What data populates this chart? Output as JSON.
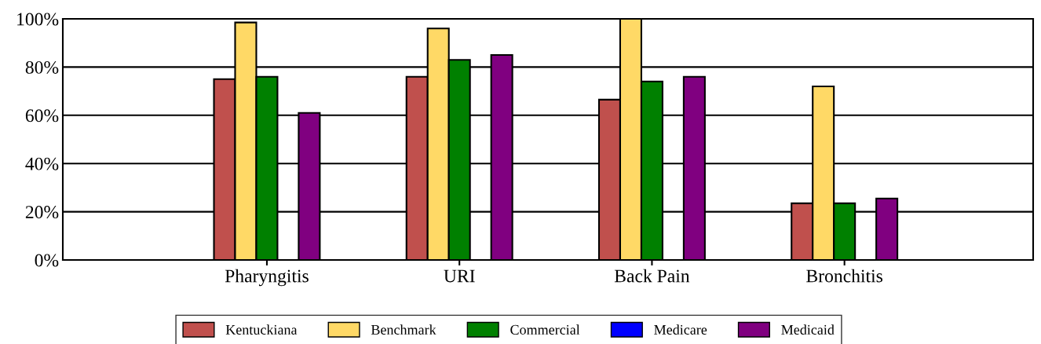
{
  "chart_data": {
    "type": "bar",
    "categories": [
      "Pharyngitis",
      "URI",
      "Back Pain",
      "Bronchitis"
    ],
    "series": [
      {
        "name": "Kentuckiana",
        "color": "#c0504d",
        "values": [
          75,
          76,
          66.5,
          23.5
        ]
      },
      {
        "name": "Benchmark",
        "color": "#ffd966",
        "values": [
          98.5,
          96,
          100,
          72
        ]
      },
      {
        "name": "Commercial",
        "color": "#008000",
        "values": [
          76,
          83,
          74,
          23.5
        ]
      },
      {
        "name": "Medicare",
        "color": "#0000ff",
        "values": [
          null,
          null,
          null,
          null
        ]
      },
      {
        "name": "Medicaid",
        "color": "#800080",
        "values": [
          61,
          85,
          76,
          25.5
        ]
      }
    ],
    "ylim": [
      0,
      100
    ],
    "yticks": [
      {
        "value": 0,
        "label": "0%"
      },
      {
        "value": 20,
        "label": "20%"
      },
      {
        "value": 40,
        "label": "40%"
      },
      {
        "value": 60,
        "label": "60%"
      },
      {
        "value": 80,
        "label": "80%"
      },
      {
        "value": 100,
        "label": "100%"
      }
    ],
    "grid": "y",
    "legend": "bottom"
  }
}
